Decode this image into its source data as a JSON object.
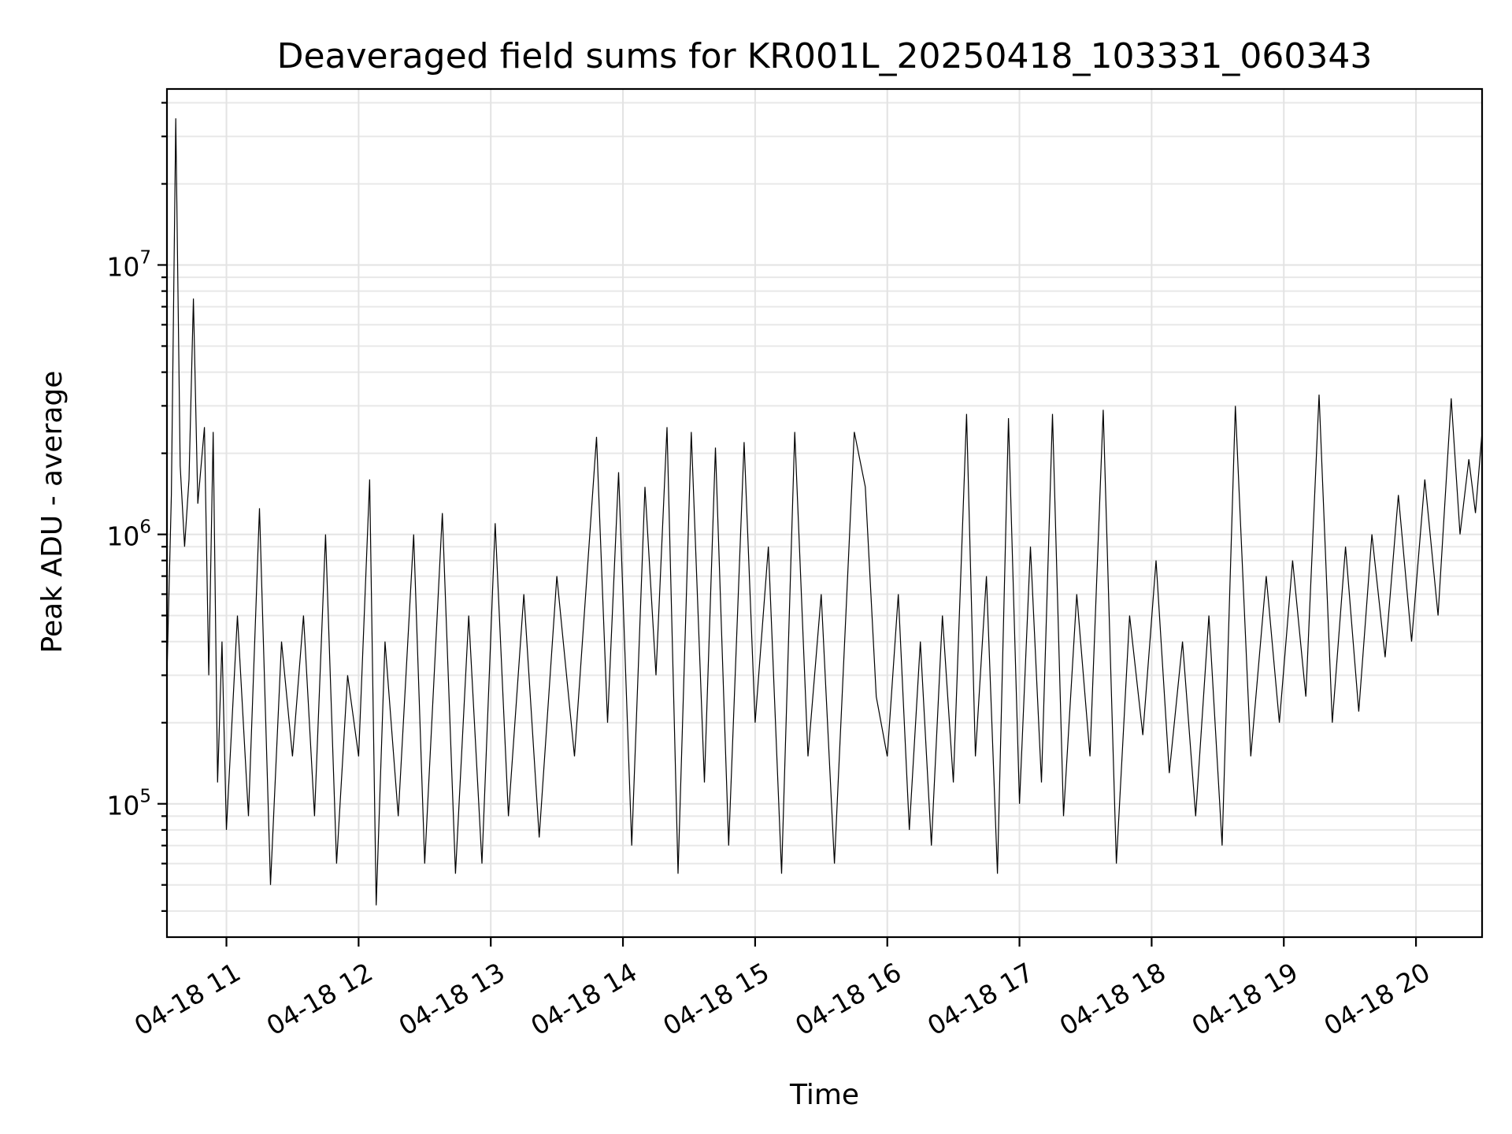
{
  "chart_data": {
    "type": "line",
    "title": "Deaveraged field sums for KR001L_20250418_103331_060343",
    "xlabel": "Time",
    "ylabel": "Peak ADU - average",
    "yscale": "log",
    "grid": true,
    "legend": "none",
    "ylim": [
      32000,
      45000000
    ],
    "xlim": [
      "2025-04-18 10:33",
      "2025-04-18 20:30"
    ],
    "x_ticks": [
      {
        "label": "04-18 11",
        "time": "2025-04-18 11:00"
      },
      {
        "label": "04-18 12",
        "time": "2025-04-18 12:00"
      },
      {
        "label": "04-18 13",
        "time": "2025-04-18 13:00"
      },
      {
        "label": "04-18 14",
        "time": "2025-04-18 14:00"
      },
      {
        "label": "04-18 15",
        "time": "2025-04-18 15:00"
      },
      {
        "label": "04-18 16",
        "time": "2025-04-18 16:00"
      },
      {
        "label": "04-18 17",
        "time": "2025-04-18 17:00"
      },
      {
        "label": "04-18 18",
        "time": "2025-04-18 18:00"
      },
      {
        "label": "04-18 19",
        "time": "2025-04-18 19:00"
      },
      {
        "label": "04-18 20",
        "time": "2025-04-18 20:00"
      }
    ],
    "y_ticks": [
      {
        "base": "10",
        "exp": "5",
        "value": 100000
      },
      {
        "base": "10",
        "exp": "6",
        "value": 1000000
      },
      {
        "base": "10",
        "exp": "7",
        "value": 10000000
      }
    ],
    "series": [
      {
        "color": "#000000",
        "points": [
          [
            "2025-04-18 10:33",
            300000
          ],
          [
            "2025-04-18 10:35",
            1400000
          ],
          [
            "2025-04-18 10:37",
            35000000
          ],
          [
            "2025-04-18 10:39",
            1800000
          ],
          [
            "2025-04-18 10:41",
            900000
          ],
          [
            "2025-04-18 10:43",
            1600000
          ],
          [
            "2025-04-18 10:45",
            7500000
          ],
          [
            "2025-04-18 10:47",
            1300000
          ],
          [
            "2025-04-18 10:50",
            2500000
          ],
          [
            "2025-04-18 10:52",
            300000
          ],
          [
            "2025-04-18 10:54",
            2400000
          ],
          [
            "2025-04-18 10:56",
            120000
          ],
          [
            "2025-04-18 10:58",
            400000
          ],
          [
            "2025-04-18 11:00",
            80000
          ],
          [
            "2025-04-18 11:05",
            500000
          ],
          [
            "2025-04-18 11:10",
            90000
          ],
          [
            "2025-04-18 11:15",
            1250000
          ],
          [
            "2025-04-18 11:20",
            50000
          ],
          [
            "2025-04-18 11:25",
            400000
          ],
          [
            "2025-04-18 11:30",
            150000
          ],
          [
            "2025-04-18 11:35",
            500000
          ],
          [
            "2025-04-18 11:40",
            90000
          ],
          [
            "2025-04-18 11:45",
            1000000
          ],
          [
            "2025-04-18 11:50",
            60000
          ],
          [
            "2025-04-18 11:55",
            300000
          ],
          [
            "2025-04-18 12:00",
            150000
          ],
          [
            "2025-04-18 12:05",
            1600000
          ],
          [
            "2025-04-18 12:08",
            42000
          ],
          [
            "2025-04-18 12:12",
            400000
          ],
          [
            "2025-04-18 12:18",
            90000
          ],
          [
            "2025-04-18 12:25",
            1000000
          ],
          [
            "2025-04-18 12:30",
            60000
          ],
          [
            "2025-04-18 12:38",
            1200000
          ],
          [
            "2025-04-18 12:44",
            55000
          ],
          [
            "2025-04-18 12:50",
            500000
          ],
          [
            "2025-04-18 12:56",
            60000
          ],
          [
            "2025-04-18 13:02",
            1100000
          ],
          [
            "2025-04-18 13:08",
            90000
          ],
          [
            "2025-04-18 13:15",
            600000
          ],
          [
            "2025-04-18 13:22",
            75000
          ],
          [
            "2025-04-18 13:30",
            700000
          ],
          [
            "2025-04-18 13:38",
            150000
          ],
          [
            "2025-04-18 13:48",
            2300000
          ],
          [
            "2025-04-18 13:53",
            200000
          ],
          [
            "2025-04-18 13:58",
            1700000
          ],
          [
            "2025-04-18 14:04",
            70000
          ],
          [
            "2025-04-18 14:10",
            1500000
          ],
          [
            "2025-04-18 14:15",
            300000
          ],
          [
            "2025-04-18 14:20",
            2500000
          ],
          [
            "2025-04-18 14:25",
            55000
          ],
          [
            "2025-04-18 14:31",
            2400000
          ],
          [
            "2025-04-18 14:37",
            120000
          ],
          [
            "2025-04-18 14:42",
            2100000
          ],
          [
            "2025-04-18 14:48",
            70000
          ],
          [
            "2025-04-18 14:55",
            2200000
          ],
          [
            "2025-04-18 15:00",
            200000
          ],
          [
            "2025-04-18 15:06",
            900000
          ],
          [
            "2025-04-18 15:12",
            55000
          ],
          [
            "2025-04-18 15:18",
            2400000
          ],
          [
            "2025-04-18 15:24",
            150000
          ],
          [
            "2025-04-18 15:30",
            600000
          ],
          [
            "2025-04-18 15:36",
            60000
          ],
          [
            "2025-04-18 15:45",
            2400000
          ],
          [
            "2025-04-18 15:50",
            1500000
          ],
          [
            "2025-04-18 15:55",
            250000
          ],
          [
            "2025-04-18 16:00",
            150000
          ],
          [
            "2025-04-18 16:05",
            600000
          ],
          [
            "2025-04-18 16:10",
            80000
          ],
          [
            "2025-04-18 16:15",
            400000
          ],
          [
            "2025-04-18 16:20",
            70000
          ],
          [
            "2025-04-18 16:25",
            500000
          ],
          [
            "2025-04-18 16:30",
            120000
          ],
          [
            "2025-04-18 16:36",
            2800000
          ],
          [
            "2025-04-18 16:40",
            150000
          ],
          [
            "2025-04-18 16:45",
            700000
          ],
          [
            "2025-04-18 16:50",
            55000
          ],
          [
            "2025-04-18 16:55",
            2700000
          ],
          [
            "2025-04-18 17:00",
            100000
          ],
          [
            "2025-04-18 17:05",
            900000
          ],
          [
            "2025-04-18 17:10",
            120000
          ],
          [
            "2025-04-18 17:15",
            2800000
          ],
          [
            "2025-04-18 17:20",
            90000
          ],
          [
            "2025-04-18 17:26",
            600000
          ],
          [
            "2025-04-18 17:32",
            150000
          ],
          [
            "2025-04-18 17:38",
            2900000
          ],
          [
            "2025-04-18 17:44",
            60000
          ],
          [
            "2025-04-18 17:50",
            500000
          ],
          [
            "2025-04-18 17:56",
            180000
          ],
          [
            "2025-04-18 18:02",
            800000
          ],
          [
            "2025-04-18 18:08",
            130000
          ],
          [
            "2025-04-18 18:14",
            400000
          ],
          [
            "2025-04-18 18:20",
            90000
          ],
          [
            "2025-04-18 18:26",
            500000
          ],
          [
            "2025-04-18 18:32",
            70000
          ],
          [
            "2025-04-18 18:38",
            3000000
          ],
          [
            "2025-04-18 18:45",
            150000
          ],
          [
            "2025-04-18 18:52",
            700000
          ],
          [
            "2025-04-18 18:58",
            200000
          ],
          [
            "2025-04-18 19:04",
            800000
          ],
          [
            "2025-04-18 19:10",
            250000
          ],
          [
            "2025-04-18 19:16",
            3300000
          ],
          [
            "2025-04-18 19:22",
            200000
          ],
          [
            "2025-04-18 19:28",
            900000
          ],
          [
            "2025-04-18 19:34",
            220000
          ],
          [
            "2025-04-18 19:40",
            1000000
          ],
          [
            "2025-04-18 19:46",
            350000
          ],
          [
            "2025-04-18 19:52",
            1400000
          ],
          [
            "2025-04-18 19:58",
            400000
          ],
          [
            "2025-04-18 20:04",
            1600000
          ],
          [
            "2025-04-18 20:10",
            500000
          ],
          [
            "2025-04-18 20:16",
            3200000
          ],
          [
            "2025-04-18 20:20",
            1000000
          ],
          [
            "2025-04-18 20:24",
            1900000
          ],
          [
            "2025-04-18 20:27",
            1200000
          ],
          [
            "2025-04-18 20:30",
            2400000
          ]
        ]
      }
    ]
  }
}
